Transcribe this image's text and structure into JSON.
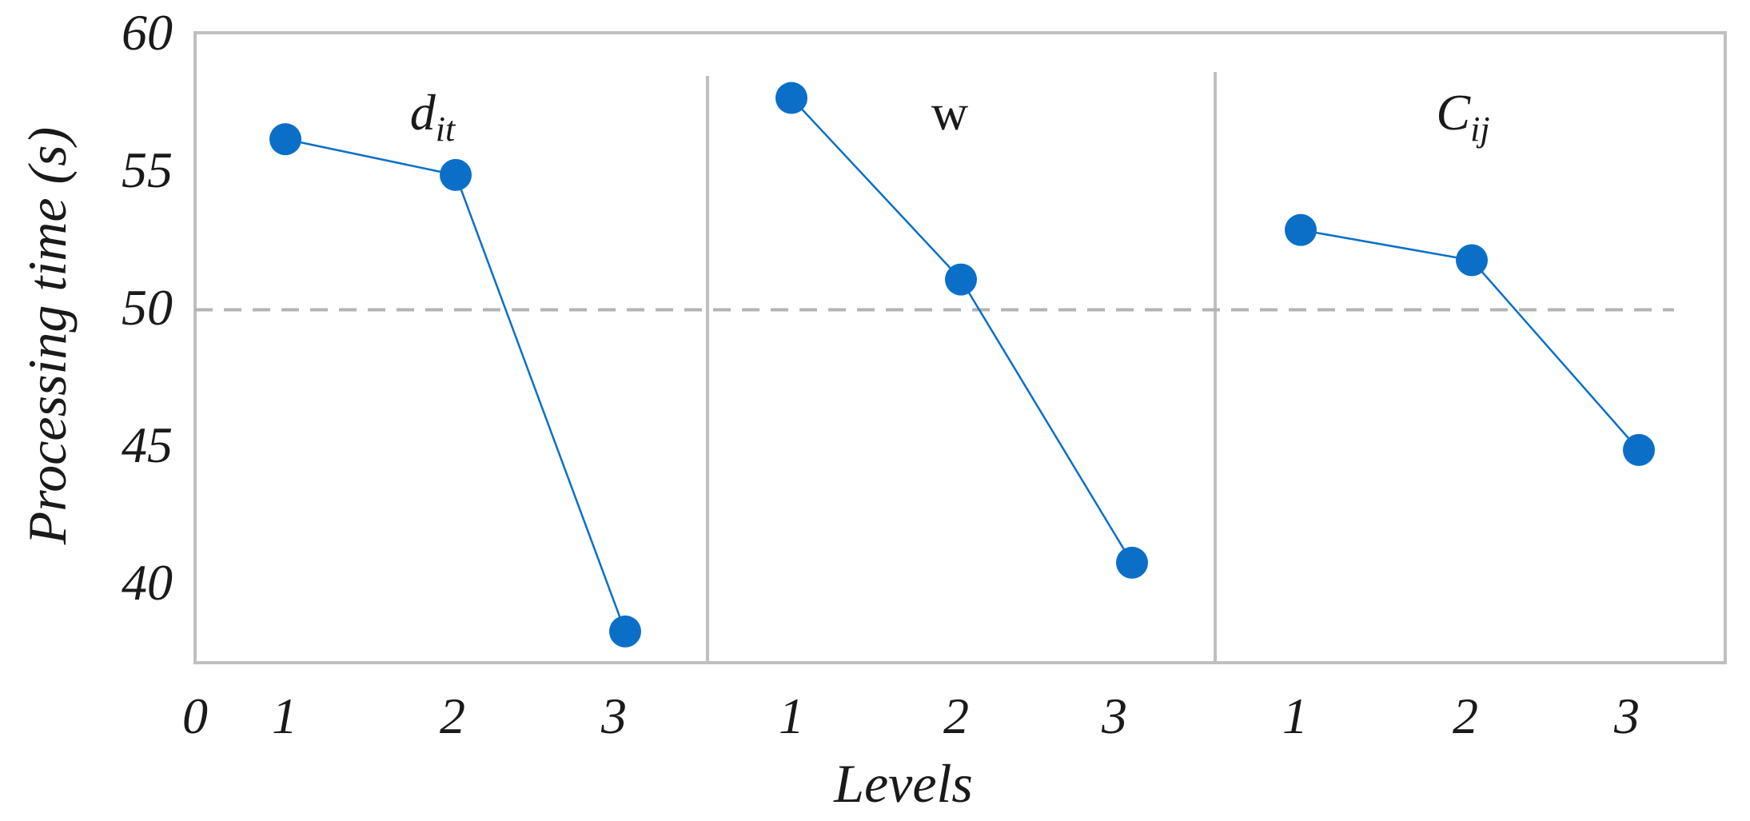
{
  "chart_data": {
    "type": "line",
    "xlabel": "Levels",
    "ylabel": "Processing time (s)",
    "ylim": [
      36,
      60
    ],
    "yticks": [
      "40",
      "45",
      "50",
      "55",
      "60"
    ],
    "x_origin_label": "0",
    "reference_line": {
      "value": 49.9,
      "style": "dashed",
      "color": "#b3b3b3"
    },
    "grid": false,
    "series_color": "#0B6FC8",
    "frame_color": "#bfbfbf",
    "panels": [
      {
        "title": "d",
        "title_subscript": "it",
        "title_italic": true,
        "categories": [
          "1",
          "2",
          "3"
        ],
        "values": [
          56.1,
          54.8,
          38.2
        ]
      },
      {
        "title": "w",
        "title_subscript": "",
        "title_italic": false,
        "categories": [
          "1",
          "2",
          "3"
        ],
        "values": [
          57.6,
          51.0,
          40.7
        ]
      },
      {
        "title": "C",
        "title_subscript": "ij",
        "title_italic": true,
        "categories": [
          "1",
          "2",
          "3"
        ],
        "values": [
          52.8,
          51.7,
          44.8
        ]
      }
    ]
  }
}
